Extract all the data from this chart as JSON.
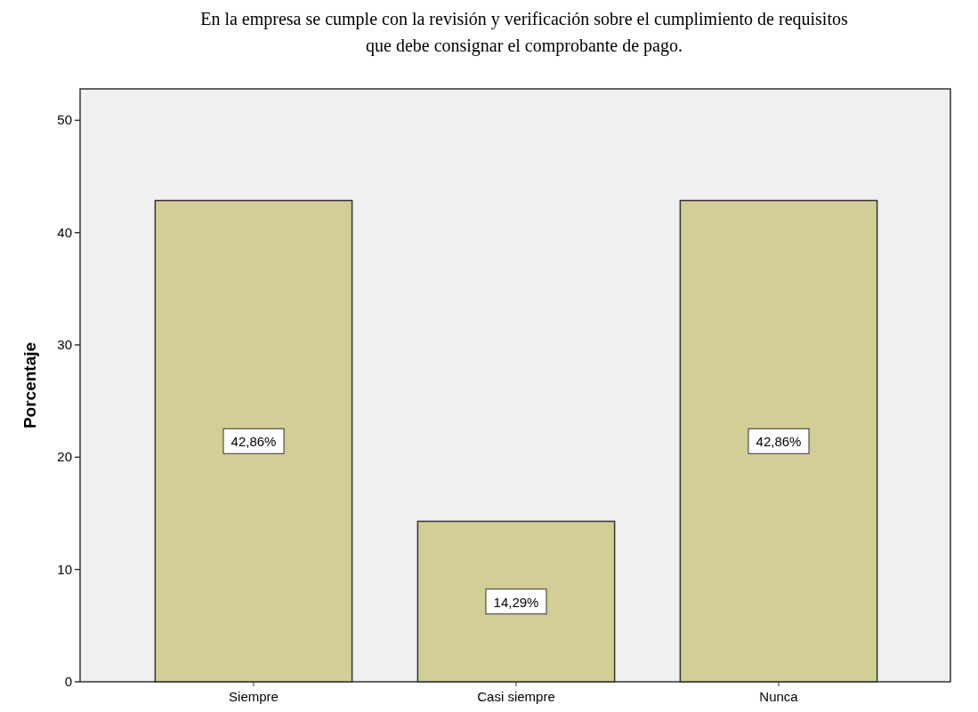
{
  "chart_data": {
    "type": "bar",
    "title": "En la empresa se cumple con la revisión y verificación sobre el cumplimiento de requisitos\nque debe consignar el  comprobante de pago.",
    "ylabel": "Porcentaje",
    "categories": [
      "Siempre",
      "Casi siempre",
      "Nunca"
    ],
    "values": [
      42.86,
      14.29,
      42.86
    ],
    "value_labels": [
      "42,86%",
      "14,29%",
      "42,86%"
    ],
    "color": "#d3cd96",
    "ylim": [
      0,
      52.8
    ],
    "yticks": [
      0,
      10,
      20,
      30,
      40,
      50
    ],
    "grid": false
  }
}
